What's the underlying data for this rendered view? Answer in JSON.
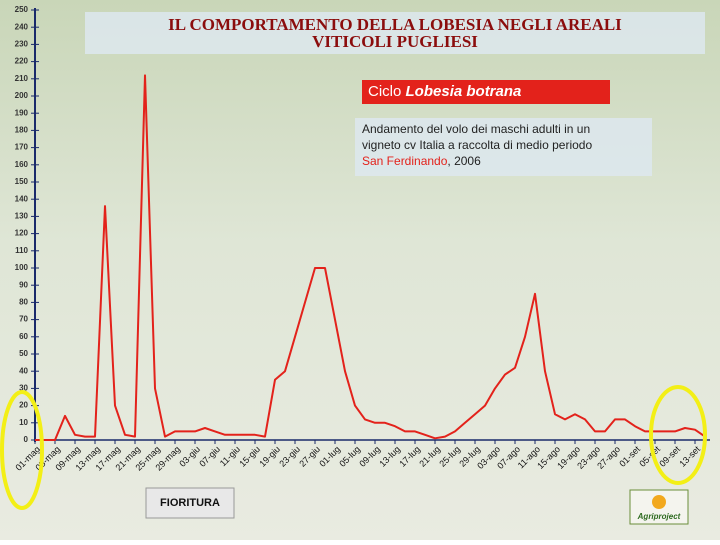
{
  "chart_data": {
    "type": "line",
    "title": [
      "IL COMPORTAMENTO DELLA LOBESIA NEGLI AREALI",
      "VITICOLI PUGLIESI"
    ],
    "cycle_label": [
      "Ciclo",
      "Lobesia botrana"
    ],
    "note": [
      "Andamento del volo dei maschi adulti in un",
      "vigneto cv Italia a raccolta di medio periodo",
      "San Ferdinando",
      ", 2006"
    ],
    "annotation": "FIORITURA",
    "logo": "Agriproject",
    "categories": [
      "01-mag",
      null,
      "05-mag",
      null,
      "09-mag",
      null,
      "13-mag",
      null,
      "17-mag",
      null,
      "21-mag",
      null,
      "25-mag",
      null,
      "29-mag",
      null,
      "03-giu",
      null,
      "07-giu",
      null,
      "11-giu",
      null,
      "15-giu",
      null,
      "19-giu",
      null,
      "23-giu",
      null,
      "27-giu",
      null,
      "01-lug",
      null,
      "05-lug",
      null,
      "09-lug",
      null,
      "13-lug",
      null,
      "17-lug",
      null,
      "21-lug",
      null,
      "25-lug",
      null,
      "29-lug",
      null,
      "03-ago",
      null,
      "07-ago",
      null,
      "11-ago",
      null,
      "15-ago",
      null,
      "19-ago",
      null,
      "23-ago",
      null,
      "27-ago",
      null,
      "01-set",
      null,
      "05-set",
      null,
      "09-set",
      null,
      "13-set",
      null
    ],
    "values": [
      0,
      0,
      0,
      14,
      3,
      2,
      2,
      136,
      20,
      3,
      2,
      212,
      30,
      2,
      5,
      5,
      5,
      7,
      5,
      3,
      3,
      3,
      3,
      2,
      35,
      40,
      60,
      80,
      100,
      100,
      70,
      40,
      20,
      12,
      10,
      10,
      8,
      5,
      5,
      3,
      1,
      2,
      5,
      10,
      15,
      20,
      30,
      38,
      42,
      60,
      85,
      40,
      15,
      12,
      15,
      12,
      5,
      5,
      12,
      12,
      8,
      5,
      5,
      5,
      5,
      7,
      6,
      2
    ],
    "color": "#e3221b",
    "ylim": [
      0,
      250
    ],
    "yticks": [
      0,
      10,
      20,
      30,
      40,
      50,
      60,
      70,
      80,
      90,
      100,
      110,
      120,
      130,
      140,
      150,
      160,
      170,
      180,
      190,
      200,
      210,
      220,
      230,
      240,
      250
    ],
    "grid": false
  }
}
